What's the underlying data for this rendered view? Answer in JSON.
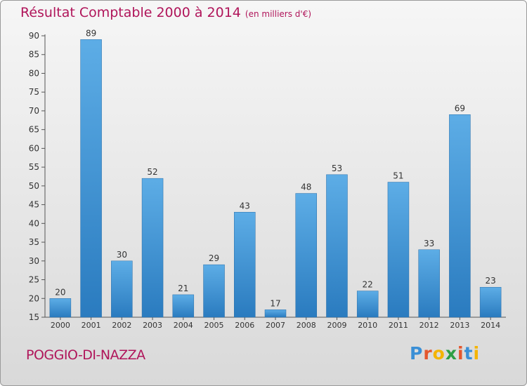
{
  "header": {
    "title": "Résultat Comptable 2000 à 2014",
    "unit_note": "(en milliers d'€)"
  },
  "footer": {
    "place": "POGGIO-DI-NAZZA",
    "logo_letters": [
      "P",
      "r",
      "o",
      "x",
      "i",
      "t",
      "i"
    ],
    "logo_colors": [
      "#3a8fd6",
      "#e4572e",
      "#f4b400",
      "#2e9e44",
      "#e4572e",
      "#3a8fd6",
      "#f4b400"
    ]
  },
  "colors": {
    "bar_top": "#5dade6",
    "bar_bottom": "#2a7bbf",
    "accent": "#b0155a"
  },
  "chart_data": {
    "type": "bar",
    "title": "Résultat Comptable 2000 à 2014",
    "subtitle": "(en milliers d'€)",
    "xlabel": "",
    "ylabel": "",
    "categories": [
      "2000",
      "2001",
      "2002",
      "2003",
      "2004",
      "2005",
      "2006",
      "2007",
      "2008",
      "2009",
      "2010",
      "2011",
      "2012",
      "2013",
      "2014"
    ],
    "values": [
      20,
      89,
      30,
      52,
      21,
      29,
      43,
      17,
      48,
      53,
      22,
      51,
      33,
      69,
      23
    ],
    "ylim": [
      15,
      90
    ],
    "yticks": [
      15,
      20,
      25,
      30,
      35,
      40,
      45,
      50,
      55,
      60,
      65,
      70,
      75,
      80,
      85,
      90
    ],
    "grid": false,
    "data_labels": true
  }
}
